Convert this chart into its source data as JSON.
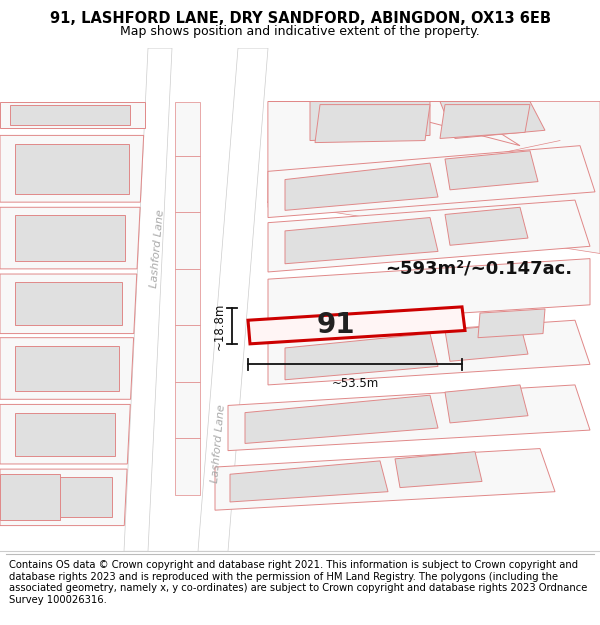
{
  "title": "91, LASHFORD LANE, DRY SANDFORD, ABINGDON, OX13 6EB",
  "subtitle": "Map shows position and indicative extent of the property.",
  "footer": "Contains OS data © Crown copyright and database right 2021. This information is subject to Crown copyright and database rights 2023 and is reproduced with the permission of HM Land Registry. The polygons (including the associated geometry, namely x, y co-ordinates) are subject to Crown copyright and database rights 2023 Ordnance Survey 100026316.",
  "area_label": "~593m²/~0.147ac.",
  "width_label": "~53.5m",
  "height_label": "~18.8m",
  "property_number": "91",
  "bg_color": "#ffffff",
  "building_fill": "#e0e0e0",
  "plot_fill": "#f5f5f5",
  "plot_edge": "#e08888",
  "building_edge": "#e08888",
  "road_stroke": "#d09090",
  "highlight_stroke": "#cc0000",
  "dim_color": "#111111",
  "road_label_color": "#aaaaaa",
  "title_fontsize": 10.5,
  "subtitle_fontsize": 9,
  "footer_fontsize": 7.2,
  "area_fontsize": 13,
  "number_fontsize": 20,
  "dim_fontsize": 8.5,
  "road_fontsize": 8
}
